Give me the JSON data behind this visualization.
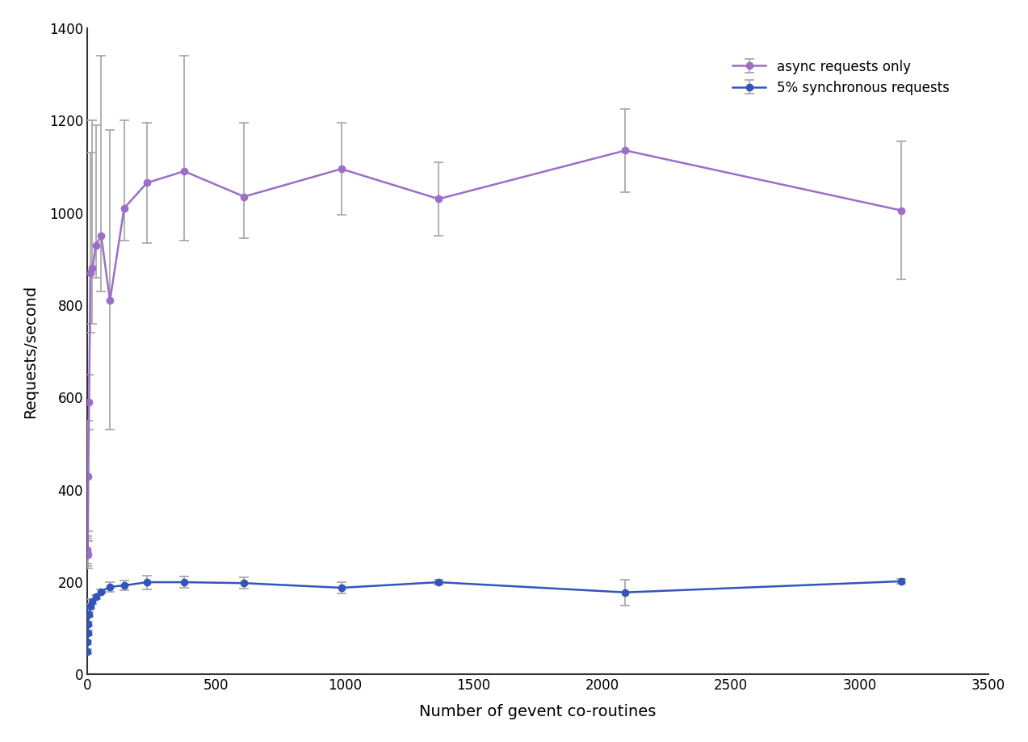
{
  "async_x": [
    1,
    2,
    3,
    5,
    8,
    13,
    21,
    34,
    55,
    89,
    144,
    233,
    377,
    610,
    987,
    1365,
    2090,
    3162
  ],
  "async_y": [
    265,
    270,
    260,
    430,
    590,
    870,
    880,
    930,
    950,
    810,
    1010,
    1065,
    1090,
    1035,
    1095,
    1030,
    1135,
    1005
  ],
  "async_yerr_low": [
    30,
    30,
    30,
    120,
    60,
    130,
    120,
    70,
    120,
    280,
    70,
    130,
    150,
    90,
    100,
    80,
    90,
    150
  ],
  "async_yerr_high": [
    30,
    30,
    30,
    120,
    60,
    260,
    320,
    260,
    390,
    370,
    190,
    130,
    250,
    160,
    100,
    80,
    90,
    150
  ],
  "sync_x": [
    1,
    2,
    3,
    5,
    8,
    13,
    21,
    34,
    55,
    89,
    144,
    233,
    377,
    610,
    987,
    1365,
    2090,
    3162
  ],
  "sync_y": [
    50,
    70,
    90,
    110,
    130,
    148,
    158,
    168,
    180,
    190,
    193,
    200,
    200,
    198,
    188,
    200,
    178,
    202
  ],
  "sync_yerr_low": [
    5,
    5,
    5,
    5,
    5,
    5,
    5,
    5,
    5,
    10,
    10,
    15,
    12,
    12,
    12,
    5,
    28,
    5
  ],
  "sync_yerr_high": [
    5,
    5,
    5,
    5,
    5,
    5,
    5,
    5,
    5,
    10,
    10,
    15,
    12,
    12,
    12,
    5,
    28,
    5
  ],
  "async_color": "#9B6FC8",
  "sync_color": "#3355BB",
  "errbar_color": "#AAAAAA",
  "xlabel": "Number of gevent co-routines",
  "ylabel": "Requests/second",
  "legend_async": "async requests only",
  "legend_sync": "5% synchronous requests",
  "xlim": [
    0,
    3500
  ],
  "ylim": [
    0,
    1400
  ],
  "xticks": [
    0,
    500,
    1000,
    1500,
    2000,
    2500,
    3000,
    3500
  ],
  "yticks": [
    0,
    200,
    400,
    600,
    800,
    1000,
    1200,
    1400
  ],
  "bg_color": "#FFFFFF"
}
